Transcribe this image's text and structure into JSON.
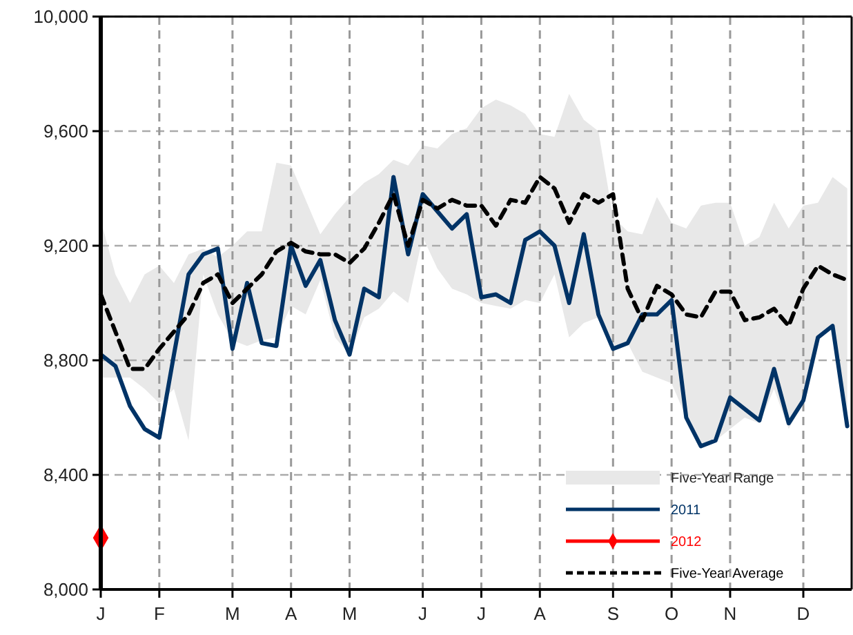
{
  "chart_data": {
    "type": "line",
    "categories": [
      "J",
      null,
      null,
      null,
      "F",
      null,
      null,
      null,
      null,
      "M",
      null,
      null,
      null,
      "A",
      null,
      null,
      null,
      "M",
      null,
      null,
      null,
      null,
      "J",
      null,
      null,
      null,
      "J",
      null,
      null,
      null,
      "A",
      null,
      null,
      null,
      null,
      "S",
      null,
      null,
      null,
      "O",
      null,
      null,
      null,
      "N",
      null,
      null,
      null,
      null,
      "D",
      null,
      null,
      null
    ],
    "ylim": [
      8000,
      10000
    ],
    "yticks": [
      {
        "value": 8000,
        "label": "8,000"
      },
      {
        "value": 8400,
        "label": "8,400"
      },
      {
        "value": 8800,
        "label": "8,800"
      },
      {
        "value": 9200,
        "label": "9,200"
      },
      {
        "value": 9600,
        "label": "9,600"
      },
      {
        "value": 10000,
        "label": "10,000"
      }
    ],
    "grid": true,
    "legend": "bottom right",
    "annotations": [
      "Five-Year Range"
    ],
    "series": [
      {
        "name": "2011",
        "color": "#003366",
        "line_style": "solid",
        "marker": "none",
        "values": [
          8820,
          8780,
          8640,
          8560,
          8530,
          8820,
          9100,
          9170,
          9190,
          8840,
          9070,
          8860,
          8850,
          9200,
          9060,
          9150,
          8940,
          8820,
          9050,
          9020,
          9440,
          9170,
          9380,
          9320,
          9260,
          9310,
          9020,
          9030,
          9000,
          9220,
          9250,
          9200,
          9000,
          9240,
          8960,
          8840,
          8860,
          8960,
          8960,
          9010,
          8600,
          8500,
          8520,
          8670,
          8630,
          8590,
          8770,
          8580,
          8660,
          8880,
          8920,
          8570
        ]
      },
      {
        "name": "2012",
        "color": "#ff0000",
        "line_style": "solid",
        "marker": "diamond",
        "values": [
          8180,
          null,
          null,
          null,
          null,
          null,
          null,
          null,
          null,
          null,
          null,
          null,
          null,
          null,
          null,
          null,
          null,
          null,
          null,
          null,
          null,
          null,
          null,
          null,
          null,
          null,
          null,
          null,
          null,
          null,
          null,
          null,
          null,
          null,
          null,
          null,
          null,
          null,
          null,
          null,
          null,
          null,
          null,
          null,
          null,
          null,
          null,
          null,
          null,
          null,
          null,
          null
        ]
      },
      {
        "name": "Five-Year Average",
        "color": "#000000",
        "line_style": "dashed",
        "marker": "none",
        "values": [
          9030,
          8900,
          8770,
          8770,
          8840,
          8900,
          8960,
          9070,
          9100,
          9000,
          9050,
          9100,
          9180,
          9210,
          9180,
          9170,
          9170,
          9140,
          9190,
          9280,
          9380,
          9200,
          9360,
          9330,
          9360,
          9340,
          9340,
          9270,
          9360,
          9350,
          9440,
          9400,
          9280,
          9380,
          9350,
          9380,
          9050,
          8940,
          9060,
          9030,
          8960,
          8950,
          9040,
          9040,
          8940,
          8950,
          8980,
          8920,
          9050,
          9130,
          9100,
          9080
        ],
        "upper": [
          9290,
          9100,
          9000,
          9100,
          9130,
          9070,
          9170,
          9190,
          9160,
          9200,
          9250,
          9250,
          9490,
          9480,
          9360,
          9240,
          9310,
          9370,
          9420,
          9450,
          9500,
          9480,
          9550,
          9540,
          9590,
          9610,
          9680,
          9710,
          9690,
          9660,
          9590,
          9580,
          9730,
          9640,
          9600,
          9300,
          9250,
          9240,
          9370,
          9280,
          9260,
          9340,
          9350,
          9350,
          9200,
          9230,
          9350,
          9260,
          9340,
          9350,
          9440,
          9400
        ],
        "lower": [
          8740,
          8740,
          8740,
          8700,
          8650,
          8700,
          8520,
          9100,
          8960,
          8870,
          8850,
          8870,
          8880,
          8990,
          8960,
          9080,
          8880,
          8820,
          8950,
          8980,
          9040,
          9000,
          9230,
          9120,
          9050,
          9030,
          9000,
          8990,
          8980,
          9010,
          9000,
          9100,
          8880,
          8930,
          8950,
          8840,
          8860,
          8760,
          8740,
          8720,
          8600,
          8500,
          8520,
          8560,
          8600,
          8580,
          8700,
          8560,
          8650,
          8880,
          8910,
          8570
        ]
      }
    ]
  }
}
